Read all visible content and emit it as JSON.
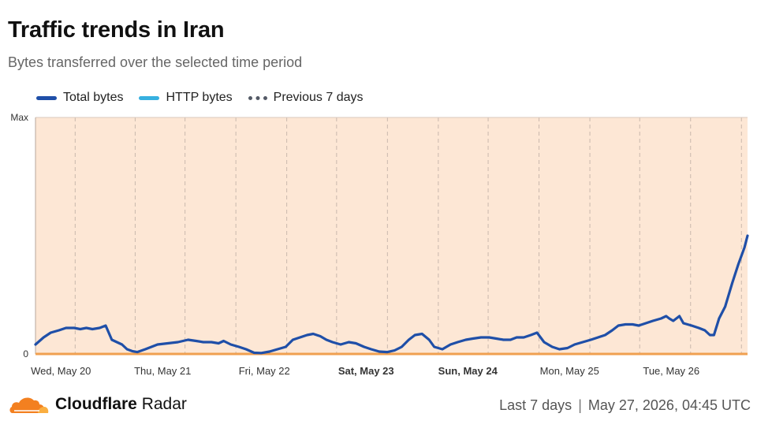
{
  "header": {
    "title": "Traffic trends in Iran",
    "subtitle": "Bytes transferred over the selected time period"
  },
  "legend": [
    {
      "label": "Total bytes",
      "color": "#1f4fa8",
      "style": "solid"
    },
    {
      "label": "HTTP bytes",
      "color": "#37b0e0",
      "style": "solid"
    },
    {
      "label": "Previous 7 days",
      "color": "#545a66",
      "style": "dashed"
    }
  ],
  "footer": {
    "brand_bold": "Cloudflare",
    "brand_rest": "Radar",
    "range": "Last 7 days",
    "separator": "|",
    "timestamp": "May 27, 2026, 04:45 UTC"
  },
  "chart_data": {
    "type": "line",
    "y_ticks": [
      {
        "label": "Max",
        "value": 1
      },
      {
        "label": "0",
        "value": 0
      }
    ],
    "ylim": [
      0,
      1
    ],
    "xlim": [
      0,
      7
    ],
    "x_ticks": [
      {
        "label": "Wed, May 20",
        "pos": 0.25,
        "bold": false
      },
      {
        "label": "Thu, May 21",
        "pos": 1.25,
        "bold": false
      },
      {
        "label": "Fri, May 22",
        "pos": 2.25,
        "bold": false
      },
      {
        "label": "Sat, May 23",
        "pos": 3.25,
        "bold": true
      },
      {
        "label": "Sun, May 24",
        "pos": 4.25,
        "bold": true
      },
      {
        "label": "Mon, May 25",
        "pos": 5.25,
        "bold": false
      },
      {
        "label": "Tue, May 26",
        "pos": 6.25,
        "bold": false
      }
    ],
    "grid_x": [
      0.39,
      0.98,
      1.47,
      1.97,
      2.47,
      2.96,
      3.46,
      3.96,
      4.45,
      4.95,
      5.45,
      5.94,
      6.44,
      6.94
    ],
    "series": [
      {
        "name": "Total bytes",
        "color": "#1f4fa8",
        "dashed": false,
        "x": [
          0,
          0.08,
          0.15,
          0.23,
          0.3,
          0.38,
          0.44,
          0.5,
          0.56,
          0.63,
          0.69,
          0.75,
          0.8,
          0.85,
          0.9,
          0.95,
          1.0,
          1.08,
          1.2,
          1.3,
          1.4,
          1.5,
          1.58,
          1.65,
          1.73,
          1.8,
          1.85,
          1.92,
          2.0,
          2.07,
          2.15,
          2.22,
          2.3,
          2.38,
          2.46,
          2.53,
          2.6,
          2.67,
          2.73,
          2.8,
          2.86,
          2.92,
          3.0,
          3.08,
          3.15,
          3.23,
          3.3,
          3.38,
          3.46,
          3.53,
          3.6,
          3.67,
          3.73,
          3.8,
          3.87,
          3.92,
          4.0,
          4.08,
          4.15,
          4.23,
          4.3,
          4.38,
          4.46,
          4.53,
          4.6,
          4.67,
          4.73,
          4.8,
          4.87,
          4.93,
          5.0,
          5.08,
          5.15,
          5.23,
          5.3,
          5.38,
          5.46,
          5.53,
          5.6,
          5.67,
          5.73,
          5.8,
          5.87,
          5.93,
          6.0,
          6.07,
          6.15,
          6.2,
          6.23,
          6.27,
          6.33,
          6.37,
          6.45,
          6.52,
          6.58,
          6.63,
          6.67,
          6.72,
          6.78,
          6.85,
          6.91,
          6.97,
          7.0
        ],
        "values": [
          0.04,
          0.07,
          0.09,
          0.1,
          0.11,
          0.11,
          0.105,
          0.11,
          0.105,
          0.11,
          0.12,
          0.06,
          0.05,
          0.04,
          0.02,
          0.012,
          0.008,
          0.02,
          0.04,
          0.045,
          0.05,
          0.06,
          0.055,
          0.05,
          0.05,
          0.045,
          0.055,
          0.04,
          0.03,
          0.02,
          0.005,
          0.004,
          0.01,
          0.02,
          0.03,
          0.06,
          0.07,
          0.08,
          0.085,
          0.075,
          0.06,
          0.05,
          0.04,
          0.05,
          0.045,
          0.03,
          0.02,
          0.01,
          0.008,
          0.015,
          0.03,
          0.06,
          0.08,
          0.085,
          0.06,
          0.03,
          0.02,
          0.04,
          0.05,
          0.06,
          0.065,
          0.07,
          0.07,
          0.065,
          0.06,
          0.06,
          0.07,
          0.07,
          0.08,
          0.09,
          0.05,
          0.03,
          0.02,
          0.025,
          0.04,
          0.05,
          0.06,
          0.07,
          0.08,
          0.1,
          0.12,
          0.125,
          0.125,
          0.12,
          0.13,
          0.14,
          0.15,
          0.16,
          0.15,
          0.14,
          0.16,
          0.13,
          0.12,
          0.11,
          0.1,
          0.08,
          0.08,
          0.15,
          0.2,
          0.3,
          0.38,
          0.45,
          0.5
        ],
        "note_shape": "sequence continues below"
      }
    ]
  }
}
